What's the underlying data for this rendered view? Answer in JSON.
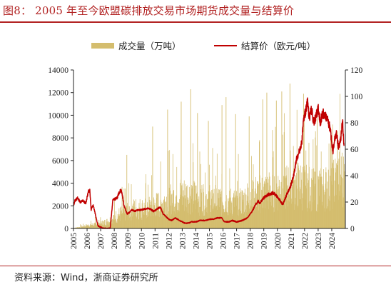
{
  "title": "图8： 2005 年至今欧盟碳排放交易市场期货成交量与结算价",
  "source": "资料来源：Wind，浙商证券研究所",
  "colors": {
    "title": "#b22222",
    "volume": "#d4bd6e",
    "price": "#c00000"
  },
  "chart_data": {
    "type": "bar",
    "legend": [
      "成交量（万吨）",
      "结算价（欧元/吨）"
    ],
    "legend_position": "top",
    "grid": false,
    "x_ticks": [
      "2005",
      "2006",
      "2007",
      "2008",
      "2009",
      "2010",
      "2011",
      "2012",
      "2013",
      "2014",
      "2015",
      "2016",
      "2017",
      "2018",
      "2019",
      "2020",
      "2021",
      "2022",
      "2023",
      "2024"
    ],
    "y_left": {
      "label": "",
      "ticks": [
        0,
        2000,
        4000,
        6000,
        8000,
        10000,
        12000,
        14000
      ],
      "ylim": [
        0,
        14000
      ]
    },
    "y_right": {
      "label": "",
      "ticks": [
        0,
        20,
        40,
        60,
        80,
        100,
        120
      ],
      "ylim": [
        0,
        120
      ]
    },
    "xlim": [
      2005.0,
      2025.0
    ],
    "series": [
      {
        "name": "成交量（万吨）",
        "axis": "left",
        "type": "bar",
        "x": [
          2005.0,
          2005.5,
          2006.0,
          2006.5,
          2007.0,
          2007.5,
          2008.0,
          2008.5,
          2009.0,
          2009.5,
          2010.0,
          2010.5,
          2011.0,
          2011.5,
          2012.0,
          2012.5,
          2013.0,
          2013.5,
          2014.0,
          2014.5,
          2015.0,
          2015.5,
          2016.0,
          2016.5,
          2017.0,
          2017.5,
          2018.0,
          2018.5,
          2019.0,
          2019.5,
          2020.0,
          2020.5,
          2021.0,
          2021.5,
          2022.0,
          2022.5,
          2023.0,
          2023.5,
          2024.0,
          2024.5
        ],
        "values": [
          50,
          150,
          300,
          400,
          500,
          700,
          1100,
          1500,
          1800,
          2000,
          2000,
          2100,
          2300,
          2600,
          2900,
          3200,
          3400,
          3300,
          3200,
          3100,
          3000,
          2900,
          2800,
          2700,
          2600,
          2800,
          3300,
          3500,
          3600,
          3800,
          4000,
          4200,
          4300,
          4400,
          4300,
          4100,
          4000,
          4100,
          4500,
          5200
        ],
        "peaks": [
          {
            "x": 2008.9,
            "value": 6500
          },
          {
            "x": 2010.8,
            "value": 9000
          },
          {
            "x": 2011.9,
            "value": 10500
          },
          {
            "x": 2012.9,
            "value": 11200
          },
          {
            "x": 2013.6,
            "value": 12300
          },
          {
            "x": 2014.1,
            "value": 10200
          },
          {
            "x": 2014.9,
            "value": 9500
          },
          {
            "x": 2015.9,
            "value": 10900
          },
          {
            "x": 2016.2,
            "value": 11600
          },
          {
            "x": 2016.9,
            "value": 10100
          },
          {
            "x": 2017.9,
            "value": 9900
          },
          {
            "x": 2018.9,
            "value": 11400
          },
          {
            "x": 2019.2,
            "value": 12000
          },
          {
            "x": 2019.9,
            "value": 11300
          },
          {
            "x": 2020.3,
            "value": 12100
          },
          {
            "x": 2020.9,
            "value": 12800
          },
          {
            "x": 2021.9,
            "value": 11900
          },
          {
            "x": 2022.9,
            "value": 10100
          },
          {
            "x": 2023.9,
            "value": 8200
          },
          {
            "x": 2024.4,
            "value": 8600
          }
        ]
      },
      {
        "name": "结算价（欧元/吨）",
        "axis": "right",
        "type": "line",
        "x": [
          2005.0,
          2005.1,
          2005.3,
          2005.5,
          2005.7,
          2005.9,
          2006.1,
          2006.2,
          2006.3,
          2006.35,
          2006.45,
          2006.6,
          2006.8,
          2007.0,
          2007.2,
          2007.5,
          2007.7,
          2007.9,
          2008.0,
          2008.2,
          2008.4,
          2008.5,
          2008.6,
          2008.7,
          2008.8,
          2008.95,
          2009.1,
          2009.3,
          2009.5,
          2009.8,
          2010.0,
          2010.3,
          2010.6,
          2010.9,
          2011.2,
          2011.4,
          2011.6,
          2011.9,
          2012.0,
          2012.2,
          2012.5,
          2012.8,
          2013.0,
          2013.2,
          2013.4,
          2013.7,
          2014.0,
          2014.3,
          2014.7,
          2015.0,
          2015.3,
          2015.6,
          2015.9,
          2016.1,
          2016.4,
          2016.7,
          2017.0,
          2017.4,
          2017.8,
          2018.0,
          2018.2,
          2018.4,
          2018.6,
          2018.7,
          2018.9,
          2019.1,
          2019.4,
          2019.7,
          2020.0,
          2020.2,
          2020.4,
          2020.7,
          2020.9,
          2021.0,
          2021.2,
          2021.4,
          2021.6,
          2021.8,
          2021.9,
          2022.0,
          2022.1,
          2022.2,
          2022.35,
          2022.5,
          2022.7,
          2022.9,
          2023.0,
          2023.15,
          2023.3,
          2023.5,
          2023.7,
          2023.9,
          2024.0,
          2024.1,
          2024.2,
          2024.35,
          2024.5,
          2024.6,
          2024.7,
          2024.8,
          2024.9
        ],
        "values": [
          17,
          21,
          23,
          20,
          21,
          19,
          28,
          29,
          14,
          16,
          18,
          11,
          2,
          1,
          0,
          0,
          0,
          22,
          22,
          23,
          28,
          29,
          25,
          18,
          15,
          11,
          12,
          14,
          13,
          14,
          14,
          15,
          15,
          13,
          15,
          16,
          11,
          8,
          7,
          6,
          8,
          6,
          5,
          4,
          4,
          5,
          5,
          6,
          6,
          7,
          7,
          8,
          8,
          5,
          5,
          6,
          5,
          6,
          8,
          11,
          14,
          18,
          21,
          19,
          22,
          24,
          26,
          27,
          24,
          21,
          18,
          26,
          30,
          33,
          40,
          52,
          58,
          65,
          80,
          85,
          90,
          97,
          84,
          90,
          80,
          87,
          91,
          80,
          87,
          86,
          82,
          75,
          64,
          58,
          67,
          72,
          61,
          65,
          71,
          82,
          60
        ]
      }
    ]
  }
}
